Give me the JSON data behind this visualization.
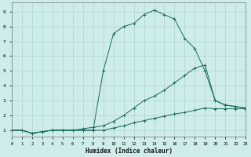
{
  "xlabel": "Humidex (Indice chaleur)",
  "xlim": [
    0,
    23
  ],
  "ylim": [
    0.6,
    9.6
  ],
  "xticks": [
    0,
    1,
    2,
    3,
    4,
    5,
    6,
    7,
    8,
    9,
    10,
    11,
    12,
    13,
    14,
    15,
    16,
    17,
    18,
    19,
    20,
    21,
    22,
    23
  ],
  "yticks": [
    1,
    2,
    3,
    4,
    5,
    6,
    7,
    8,
    9
  ],
  "bg_color": "#ceecea",
  "grid_color": "#aed4d0",
  "line_color": "#1a6860",
  "line1_x": [
    0,
    1,
    2,
    3,
    4,
    5,
    6,
    7,
    8,
    9,
    10,
    11,
    12,
    13,
    14,
    15,
    16,
    17,
    18,
    19,
    20,
    21,
    22,
    23
  ],
  "line1_y": [
    1.0,
    1.0,
    0.8,
    0.9,
    1.0,
    1.0,
    1.0,
    1.0,
    1.0,
    1.0,
    1.15,
    1.3,
    1.5,
    1.65,
    1.8,
    1.95,
    2.1,
    2.2,
    2.35,
    2.5,
    2.45,
    2.45,
    2.45,
    2.45
  ],
  "line2_x": [
    0,
    1,
    2,
    3,
    4,
    5,
    6,
    7,
    8,
    9,
    10,
    11,
    12,
    13,
    14,
    15,
    16,
    17,
    18,
    19,
    20,
    21,
    22,
    23
  ],
  "line2_y": [
    1.0,
    1.0,
    0.8,
    0.9,
    1.0,
    1.0,
    1.0,
    1.1,
    1.2,
    1.3,
    1.6,
    2.0,
    2.5,
    3.0,
    3.3,
    3.7,
    4.2,
    4.7,
    5.2,
    5.4,
    3.0,
    2.7,
    2.6,
    2.5
  ],
  "line3_x": [
    0,
    1,
    2,
    3,
    4,
    5,
    6,
    7,
    8,
    9,
    10,
    11,
    12,
    13,
    14,
    15,
    16,
    17,
    18,
    19,
    20,
    21,
    22,
    23
  ],
  "line3_y": [
    1.0,
    1.0,
    0.8,
    0.9,
    1.0,
    1.0,
    1.0,
    1.0,
    1.0,
    5.0,
    7.5,
    8.0,
    8.2,
    8.8,
    9.1,
    8.8,
    8.5,
    7.2,
    6.5,
    5.0,
    3.0,
    2.7,
    2.6,
    2.5
  ]
}
